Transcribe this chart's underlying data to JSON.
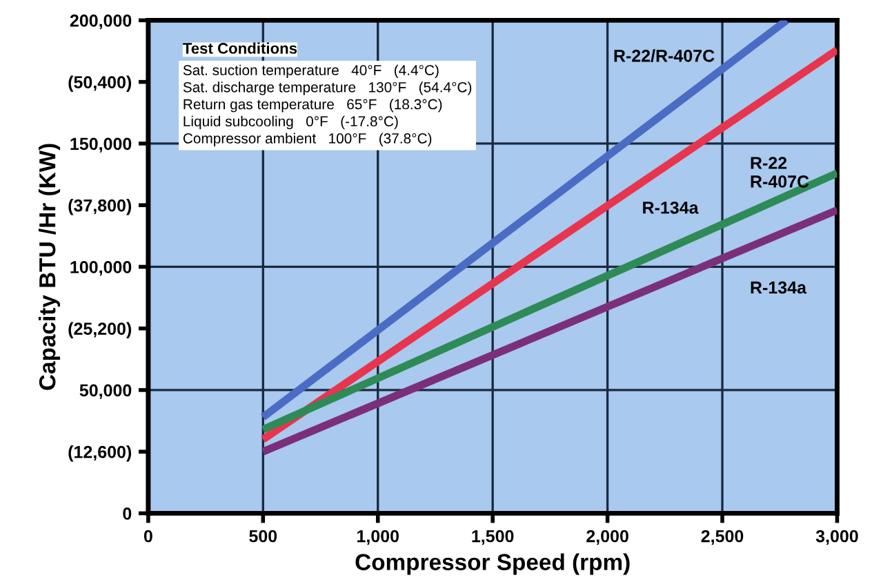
{
  "chart_data": {
    "type": "line",
    "xlabel": "Compressor Speed (rpm)",
    "y2label": "Capacity BTU /Hr (KW)",
    "series": [
      {
        "name": "R-22/R-407C",
        "color": "#4a6cc4",
        "x": [
          500,
          2780
        ],
        "values": [
          39000,
          200000
        ]
      },
      {
        "name": "R-134a",
        "color": "#e8344e",
        "x": [
          500,
          3000
        ],
        "values": [
          30000,
          188000
        ]
      },
      {
        "name": "R-22\nR-407C",
        "color": "#2e8b57",
        "x": [
          500,
          3000
        ],
        "values": [
          34000,
          138000
        ]
      },
      {
        "name": "R-134a",
        "color": "#7b2f7b",
        "x": [
          500,
          3000
        ],
        "values": [
          25000,
          123000
        ]
      }
    ],
    "annotations": [
      "Test Conditions",
      "Sat. suction temperature   40°F   (4.4°C)",
      "Sat. discharge temperature   130°F   (54.4°C)",
      "Return gas temperature   65°F   (18.3°C)",
      "Liquid subcooling   0°F   (-17.8°C)",
      "Compressor ambient   100°F   (37.8°C)"
    ],
    "xlim": [
      0,
      3000
    ],
    "xticks": [
      0,
      500,
      {
        "value": 1000,
        "label": "1,000"
      },
      {
        "value": 1500,
        "label": "1,500"
      },
      {
        "value": 2000,
        "label": "2,000"
      },
      {
        "value": 2500,
        "label": "2,500"
      },
      {
        "value": 3000,
        "label": "3,000"
      }
    ],
    "ylim": [
      0,
      200000
    ],
    "yticks": [
      0,
      {
        "value": 50000,
        "label": "50,000"
      },
      {
        "value": 100000,
        "label": "100,000"
      },
      {
        "value": 150000,
        "label": "150,000"
      },
      {
        "value": 200000,
        "label": "200,000"
      }
    ],
    "y2lim": [
      6300,
      56700
    ],
    "y2ticks": [
      {
        "value": 12600,
        "label": "(12,600)"
      },
      {
        "value": 25200,
        "label": "(25,200)"
      },
      {
        "value": 37800,
        "label": "(37,800)"
      },
      {
        "value": 50400,
        "label": "(50,400)"
      }
    ],
    "grid": true,
    "line_style": "solid",
    "marker": "none"
  }
}
